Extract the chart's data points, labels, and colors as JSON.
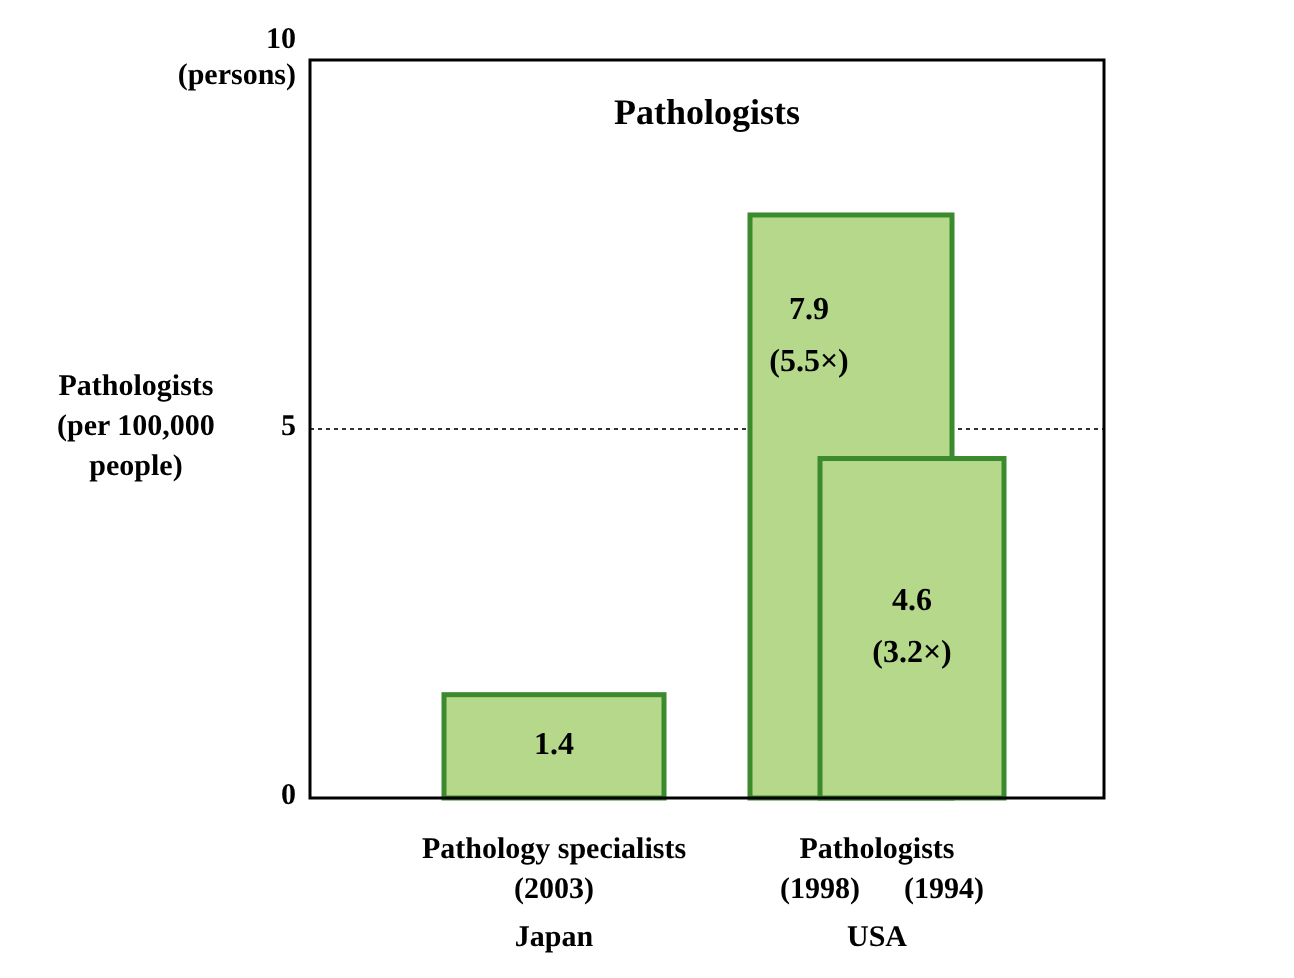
{
  "chart_data": {
    "type": "bar",
    "title": "Pathologists",
    "ylabel": "Pathologists\n(per 100,000\npeople)",
    "categories": [
      "Pathology specialists\n(2003)",
      "(1998)",
      "(1994)"
    ],
    "series": [
      {
        "colors": [
          "#b5d88a",
          "#b5d88a",
          "#b5d88a"
        ],
        "color": "#3c8a2e",
        "values": [
          1.4,
          7.9,
          4.6
        ],
        "value_labels": [
          "1.4",
          "7.9\n(5.5×)",
          "4.6\n(3.2×)"
        ]
      }
    ],
    "ylim": [
      0,
      10
    ],
    "yticks": [
      0,
      5,
      {
        "value": 10,
        "label": "10\n(persons)"
      }
    ],
    "ref_lines": [
      {
        "axis": "y",
        "value": 5,
        "color": "#333333",
        "line_style": "dotted"
      }
    ],
    "annotations": [
      "Pathologists",
      "Japan",
      "USA"
    ],
    "grid": false
  }
}
